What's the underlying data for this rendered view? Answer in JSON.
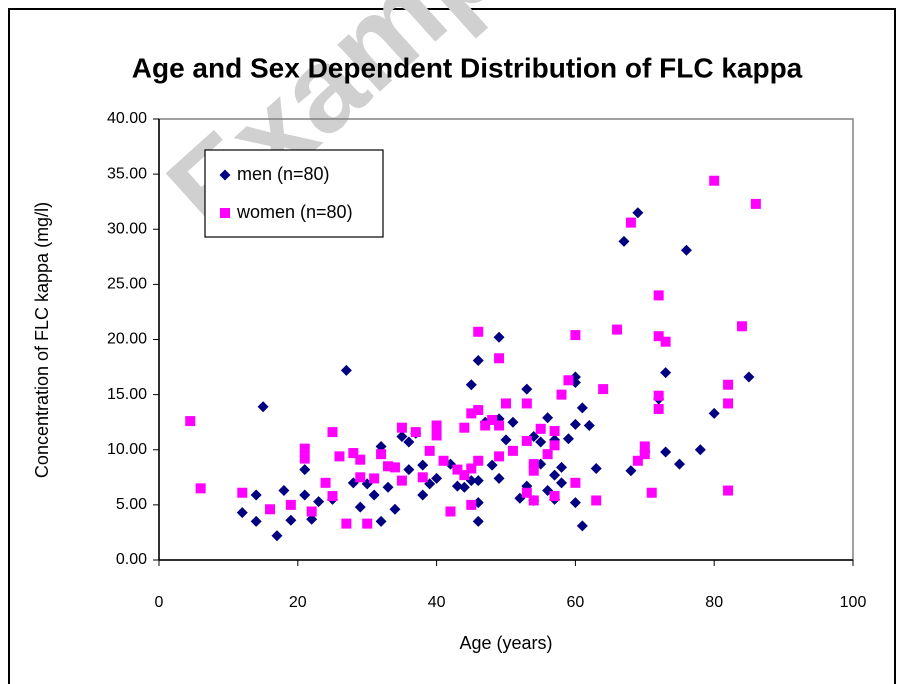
{
  "chart_data": {
    "type": "scatter",
    "title": "Age and Sex Dependent Distribution of FLC kappa",
    "x_label": "Age (years)",
    "y_label": "Concentration of FLC kappa (mg/l)",
    "watermark": "Example",
    "xlim": [
      0,
      100
    ],
    "xticks": [
      0,
      20,
      40,
      60,
      80,
      100
    ],
    "ylim": [
      0,
      40
    ],
    "yticks": [
      {
        "value": 0,
        "label": "0.00"
      },
      {
        "value": 5,
        "label": "5.00"
      },
      {
        "value": 10,
        "label": "10.00"
      },
      {
        "value": 15,
        "label": "15.00"
      },
      {
        "value": 20,
        "label": "20.00"
      },
      {
        "value": 25,
        "label": "25.00"
      },
      {
        "value": 30,
        "label": "30.00"
      },
      {
        "value": 35,
        "label": "35.00"
      },
      {
        "value": 40,
        "label": "40.00"
      }
    ],
    "grid": false,
    "legend": "top-left",
    "series": [
      {
        "name": "men (n=80)",
        "color": "#000080",
        "marker": "diamond",
        "x": [
          12,
          14,
          14,
          15,
          17,
          18,
          19,
          21,
          21,
          22,
          23,
          27,
          28,
          29,
          30,
          31,
          32,
          32,
          33,
          34,
          35,
          36,
          36,
          38,
          38,
          40,
          42,
          43,
          44,
          45,
          45,
          46,
          46,
          46,
          46,
          47,
          48,
          49,
          49,
          49,
          50,
          52,
          53,
          53,
          54,
          55,
          55,
          56,
          56,
          57,
          57,
          57,
          58,
          59,
          60,
          60,
          60,
          60,
          61,
          61,
          62,
          63,
          67,
          69,
          68,
          70,
          72,
          73,
          73,
          75,
          76,
          78,
          80,
          85,
          25,
          37,
          51,
          54,
          58,
          39
        ],
        "values": [
          4.3,
          3.5,
          5.9,
          13.9,
          2.2,
          6.3,
          3.6,
          5.9,
          8.2,
          3.7,
          5.3,
          17.2,
          7.0,
          4.8,
          6.9,
          5.9,
          3.5,
          10.3,
          6.6,
          4.6,
          11.2,
          8.2,
          10.7,
          8.6,
          5.9,
          7.4,
          8.7,
          6.7,
          6.6,
          15.9,
          7.2,
          18.1,
          3.5,
          5.2,
          7.2,
          12.5,
          8.6,
          20.2,
          7.4,
          12.8,
          10.9,
          5.6,
          15.5,
          6.7,
          11.2,
          10.7,
          8.7,
          12.9,
          6.3,
          5.5,
          7.7,
          10.9,
          7.0,
          11.0,
          16.6,
          16.1,
          5.2,
          12.3,
          13.8,
          3.1,
          12.2,
          8.3,
          28.9,
          31.5,
          8.1,
          9.8,
          14.6,
          17.0,
          9.8,
          8.7,
          28.1,
          10.0,
          13.3,
          16.6,
          5.5,
          11.5,
          12.5,
          5.4,
          8.4,
          6.9
        ]
      },
      {
        "name": "women (n=80)",
        "color": "#FF00FF",
        "marker": "square",
        "x": [
          4.5,
          6,
          12,
          16,
          19,
          21,
          21,
          22,
          24,
          25,
          25,
          26,
          27,
          28,
          29,
          29,
          30,
          32,
          33,
          34,
          35,
          35,
          37,
          38,
          39,
          40,
          40,
          42,
          43,
          44,
          44,
          45,
          45,
          45,
          46,
          46,
          46,
          47,
          48,
          49,
          49,
          49,
          50,
          51,
          53,
          53,
          53,
          54,
          54,
          54,
          55,
          56,
          57,
          57,
          57,
          58,
          59,
          60,
          60,
          63,
          64,
          66,
          68,
          69,
          70,
          70,
          71,
          72,
          72,
          72,
          72,
          73,
          80,
          82,
          82,
          82,
          84,
          86,
          31,
          41
        ],
        "values": [
          12.6,
          6.5,
          6.1,
          4.6,
          5.0,
          10.1,
          9.2,
          4.4,
          7.0,
          5.8,
          11.6,
          9.4,
          3.3,
          9.7,
          7.5,
          9.1,
          3.3,
          9.6,
          8.5,
          8.4,
          12.0,
          7.2,
          11.6,
          7.5,
          9.9,
          12.2,
          11.3,
          4.4,
          8.2,
          12.0,
          7.7,
          8.3,
          13.3,
          5.0,
          20.7,
          13.6,
          9.0,
          12.2,
          12.7,
          18.3,
          12.2,
          9.4,
          14.2,
          9.9,
          14.2,
          10.8,
          6.1,
          8.7,
          8.1,
          5.4,
          11.9,
          9.6,
          11.7,
          10.4,
          5.8,
          15.0,
          16.3,
          20.4,
          7.0,
          5.4,
          15.5,
          20.9,
          30.6,
          9.0,
          10.3,
          9.6,
          6.1,
          24.0,
          20.3,
          13.7,
          14.9,
          19.8,
          34.4,
          15.9,
          14.2,
          6.3,
          21.2,
          32.3,
          7.4,
          9.0
        ]
      }
    ]
  }
}
